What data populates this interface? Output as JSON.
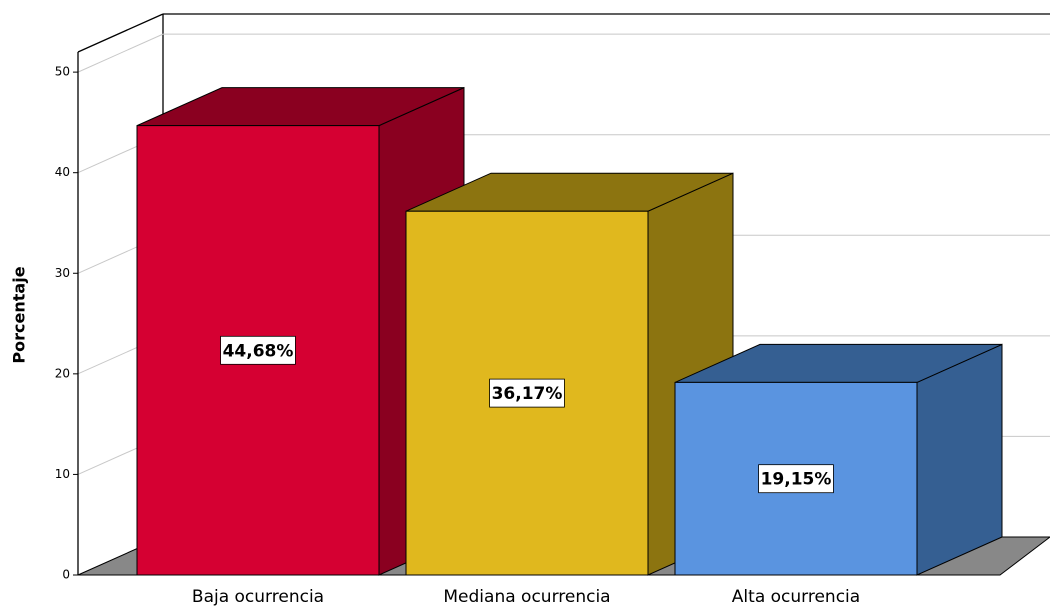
{
  "chart_data": {
    "type": "bar3d",
    "y_label": "Porcentaje",
    "categories": [
      "Baja ocurrencia",
      "Mediana ocurrencia",
      "Alta ocurrencia"
    ],
    "values": [
      44.68,
      36.17,
      19.15
    ],
    "value_labels": [
      "44,68%",
      "36,17%",
      "19,15%"
    ],
    "colors": [
      "#d50032",
      "#e0b81e",
      "#5a94e0"
    ],
    "side_colors": [
      "#8a0020",
      "#8c7410",
      "#355f92"
    ],
    "ylim": [
      0,
      52
    ],
    "yticks": [
      0,
      10,
      20,
      30,
      40,
      50
    ],
    "grid": true
  }
}
